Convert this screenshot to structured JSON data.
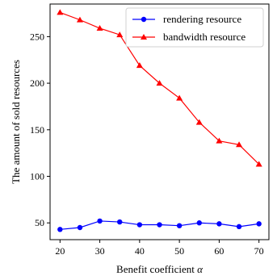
{
  "chart_data": {
    "type": "line",
    "title": "",
    "xlabel": "Benefit coefficient ",
    "xlabel_symbol": "α",
    "ylabel": "The amount of sold resources",
    "xlim": [
      17.5,
      72.5
    ],
    "ylim": [
      32,
      285
    ],
    "xticks": [
      20,
      30,
      40,
      50,
      60,
      70
    ],
    "yticks": [
      50,
      100,
      150,
      200,
      250
    ],
    "grid": false,
    "legend_position": "top-right",
    "x": [
      20,
      25,
      30,
      35,
      40,
      45,
      50,
      55,
      60,
      65,
      70
    ],
    "series": [
      {
        "name": "rendering resource",
        "color": "#0000ff",
        "marker": "circle",
        "values": [
          43,
          45,
          52,
          51,
          48,
          48,
          47,
          50,
          49,
          46,
          49
        ]
      },
      {
        "name": "bandwidth resource",
        "color": "#ff0000",
        "marker": "triangle",
        "values": [
          276,
          268,
          259,
          252,
          219,
          200,
          184,
          158,
          138,
          134,
          113
        ]
      }
    ]
  }
}
